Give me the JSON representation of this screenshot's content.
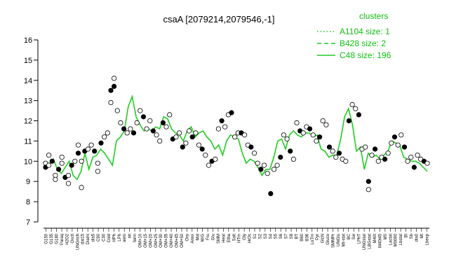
{
  "chart_data": {
    "type": "line",
    "title": "csaA [2079214,2079546,-1]",
    "xlabel": "",
    "ylabel": "",
    "ylim": [
      7,
      16
    ],
    "yticks": [
      7,
      8,
      9,
      10,
      11,
      12,
      13,
      14,
      15,
      16
    ],
    "grid": false,
    "legend_position": "top-right",
    "legend_title": "clusters",
    "legend": [
      {
        "label": "A1104 size: 1",
        "style": "dotted"
      },
      {
        "label": "B428 size: 2",
        "style": "dashed"
      },
      {
        "label": "C48 size: 196",
        "style": "solid"
      }
    ],
    "colors": {
      "series": "#22cc22",
      "marker_fill": "#000000",
      "marker_open": "#ffffff"
    },
    "x_tick_labels": [
      "G150",
      "G135",
      "G180",
      "Paraq",
      "H2O2",
      "Oxctl",
      "UNGrich",
      "dat15",
      "Diami",
      "dia5",
      "C90",
      "C30",
      "Cold",
      "HPh",
      "LPh",
      "aero",
      "nit",
      "ferm",
      "OM+10",
      "OM+15",
      "OM+20",
      "OM+25",
      "OM+30",
      "OM+35",
      "OM+40",
      "OM+45",
      "OM+50",
      "Oxy",
      "Anox",
      "Mal",
      "M/G",
      "Fru",
      "Glu",
      "SMM",
      "Heat",
      "Etha",
      "Salt",
      "HTm",
      "Gly",
      "HiOs",
      "S1",
      "S2",
      "S3",
      "S4",
      "S5",
      "S6",
      "S7",
      "S8",
      "BT",
      "B60",
      "B36",
      "LoTm",
      "Pyr",
      "GlcN",
      "Gluco",
      "SMMPr",
      "UNGlu",
      "Mt-stat",
      "BC",
      "Sw",
      "LPhT",
      "UNGstat",
      "LBGstat",
      "M40t",
      "M40t45",
      "M0",
      "Lactat",
      "M0090",
      "Lbstat",
      "BI",
      "Sb",
      "dia0",
      "Mt",
      "Lbexp"
    ],
    "series": [
      {
        "values": [
          9.8,
          9.9,
          10.1,
          9.6,
          9.4,
          9.7,
          10.0,
          9.3,
          9.1,
          9.5,
          10.4,
          9.6,
          10.2,
          10.3,
          10.6,
          10.4,
          10.1,
          9.8,
          11.0,
          11.2,
          11.5,
          12.7,
          13.2,
          12.2,
          11.8,
          11.5,
          11.6,
          11.5,
          11.7,
          11.6,
          12.2,
          12.1,
          11.6,
          11.4,
          11.3,
          11.0,
          11.5,
          11.7,
          11.2,
          11.4,
          11.5,
          11.2,
          11.0,
          10.6,
          10.8,
          10.3,
          11.0,
          11.3,
          11.2,
          11.1,
          10.4,
          9.9,
          10.1,
          10.0,
          9.7,
          9.3,
          9.6,
          9.6,
          10.2,
          11.0,
          11.1,
          10.6,
          11.3,
          11.5,
          11.3,
          11.2,
          11.4,
          11.4,
          11.2,
          11.3,
          10.6,
          10.5,
          10.2,
          10.3,
          10.3,
          11.1,
          12.2,
          12.6,
          11.8,
          10.5,
          10.7,
          9.6,
          10.4,
          10.2,
          10.3,
          10.1,
          10.3,
          10.5,
          11.0,
          10.9,
          10.8,
          10.2,
          10.1,
          10.0,
          10.0,
          9.9,
          9.7,
          9.5
        ]
      }
    ],
    "points": [
      [
        0,
        9.9
      ],
      [
        0,
        9.7
      ],
      [
        1,
        10.3
      ],
      [
        1,
        9.8
      ],
      [
        2,
        10.0
      ],
      [
        3,
        9.3
      ],
      [
        3,
        9.1
      ],
      [
        4,
        9.6
      ],
      [
        5,
        10.2
      ],
      [
        5,
        9.9
      ],
      [
        6,
        9.2
      ],
      [
        7,
        8.9
      ],
      [
        7,
        9.3
      ],
      [
        8,
        9.8
      ],
      [
        9,
        10.0
      ],
      [
        10,
        10.8
      ],
      [
        10,
        10.4
      ],
      [
        11,
        10.0
      ],
      [
        11,
        8.7
      ],
      [
        12,
        10.5
      ],
      [
        13,
        10.6
      ],
      [
        14,
        10.8
      ],
      [
        15,
        10.5
      ],
      [
        16,
        9.9
      ],
      [
        16,
        9.5
      ],
      [
        17,
        10.9
      ],
      [
        18,
        11.2
      ],
      [
        19,
        11.4
      ],
      [
        20,
        13.5
      ],
      [
        20,
        12.9
      ],
      [
        21,
        14.1
      ],
      [
        21,
        13.7
      ],
      [
        22,
        12.5
      ],
      [
        23,
        11.9
      ],
      [
        24,
        11.6
      ],
      [
        25,
        11.4
      ],
      [
        26,
        11.6
      ],
      [
        27,
        11.4
      ],
      [
        28,
        11.9
      ],
      [
        29,
        12.5
      ],
      [
        30,
        12.2
      ],
      [
        31,
        11.6
      ],
      [
        32,
        12.0
      ],
      [
        33,
        11.5
      ],
      [
        34,
        11.3
      ],
      [
        35,
        11.0
      ],
      [
        36,
        11.9
      ],
      [
        37,
        11.7
      ],
      [
        38,
        12.3
      ],
      [
        39,
        11.1
      ],
      [
        40,
        11.2
      ],
      [
        41,
        11.4
      ],
      [
        42,
        10.7
      ],
      [
        43,
        10.9
      ],
      [
        44,
        11.5
      ],
      [
        45,
        11.2
      ],
      [
        46,
        11.4
      ],
      [
        47,
        10.8
      ],
      [
        48,
        10.6
      ],
      [
        49,
        10.3
      ],
      [
        50,
        9.8
      ],
      [
        51,
        10.0
      ],
      [
        52,
        10.1
      ],
      [
        53,
        11.6
      ],
      [
        54,
        12.0
      ],
      [
        55,
        11.7
      ],
      [
        56,
        12.3
      ],
      [
        57,
        12.4
      ],
      [
        58,
        11.2
      ],
      [
        59,
        11.4
      ],
      [
        60,
        11.4
      ],
      [
        61,
        11.3
      ],
      [
        62,
        10.8
      ],
      [
        63,
        10.7
      ],
      [
        64,
        10.4
      ],
      [
        65,
        9.9
      ],
      [
        66,
        9.6
      ],
      [
        67,
        9.8
      ],
      [
        68,
        9.4
      ],
      [
        69,
        8.4
      ],
      [
        70,
        9.6
      ],
      [
        71,
        9.8
      ],
      [
        72,
        10.2
      ],
      [
        73,
        11.3
      ],
      [
        74,
        11.1
      ],
      [
        75,
        10.5
      ],
      [
        76,
        10.1
      ],
      [
        77,
        11.9
      ],
      [
        78,
        11.5
      ],
      [
        79,
        11.4
      ],
      [
        80,
        11.7
      ],
      [
        81,
        11.6
      ],
      [
        82,
        11.3
      ],
      [
        83,
        11.0
      ],
      [
        84,
        11.2
      ],
      [
        85,
        12.0
      ],
      [
        86,
        11.8
      ],
      [
        87,
        10.7
      ],
      [
        88,
        10.5
      ],
      [
        89,
        10.2
      ],
      [
        90,
        10.4
      ],
      [
        91,
        10.1
      ],
      [
        92,
        10.0
      ],
      [
        93,
        12.0
      ],
      [
        94,
        12.8
      ],
      [
        95,
        12.6
      ],
      [
        96,
        12.3
      ],
      [
        97,
        10.6
      ],
      [
        98,
        10.7
      ],
      [
        99,
        9.0
      ],
      [
        99,
        8.6
      ],
      [
        100,
        10.3
      ],
      [
        101,
        10.6
      ],
      [
        102,
        10.0
      ],
      [
        103,
        10.2
      ],
      [
        104,
        10.1
      ],
      [
        105,
        10.4
      ],
      [
        106,
        10.9
      ],
      [
        107,
        11.2
      ],
      [
        108,
        10.8
      ],
      [
        109,
        11.3
      ],
      [
        110,
        10.7
      ],
      [
        111,
        10.0
      ],
      [
        112,
        10.2
      ],
      [
        113,
        9.7
      ],
      [
        114,
        10.3
      ],
      [
        115,
        10.1
      ],
      [
        116,
        10.0
      ],
      [
        117,
        9.9
      ]
    ]
  }
}
